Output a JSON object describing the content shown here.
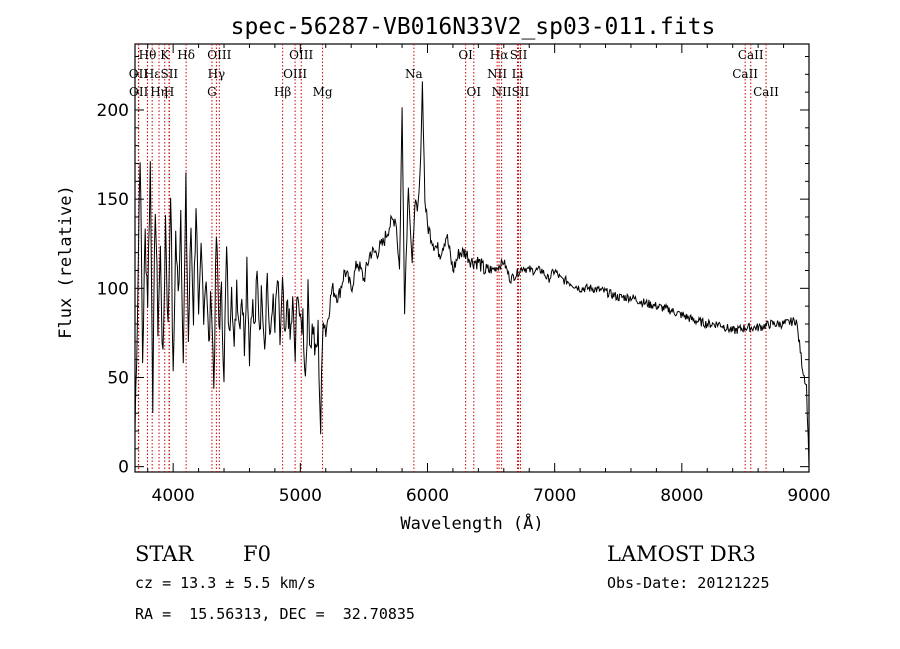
{
  "chart_data": {
    "type": "line",
    "title": "spec-56287-VB016N33V2_sp03-011.fits",
    "xlabel": "Wavelength (Å)",
    "ylabel": "Flux (relative)",
    "xlim": [
      3700,
      9000
    ],
    "ylim": [
      -3,
      237
    ],
    "xticks": [
      4000,
      5000,
      6000,
      7000,
      8000,
      9000
    ],
    "yticks": [
      0,
      50,
      100,
      150,
      200
    ],
    "grid": false,
    "legend": "none",
    "series": [
      {
        "name": "flux",
        "x": [
          3700,
          3720,
          3740,
          3760,
          3780,
          3800,
          3820,
          3840,
          3860,
          3880,
          3900,
          3920,
          3940,
          3960,
          3980,
          4000,
          4020,
          4040,
          4060,
          4080,
          4100,
          4120,
          4140,
          4160,
          4180,
          4200,
          4220,
          4240,
          4260,
          4280,
          4300,
          4320,
          4340,
          4360,
          4380,
          4400,
          4420,
          4440,
          4460,
          4480,
          4500,
          4520,
          4540,
          4560,
          4580,
          4600,
          4620,
          4640,
          4660,
          4680,
          4700,
          4720,
          4740,
          4760,
          4780,
          4800,
          4820,
          4840,
          4860,
          4880,
          4900,
          4920,
          4940,
          4960,
          4980,
          5000,
          5020,
          5040,
          5060,
          5080,
          5100,
          5120,
          5140,
          5160,
          5180,
          5200,
          5250,
          5300,
          5350,
          5400,
          5450,
          5500,
          5550,
          5600,
          5650,
          5700,
          5750,
          5780,
          5800,
          5820,
          5850,
          5880,
          5900,
          5920,
          5940,
          5960,
          5980,
          6000,
          6050,
          6100,
          6150,
          6200,
          6250,
          6300,
          6350,
          6400,
          6450,
          6500,
          6550,
          6600,
          6650,
          6700,
          6750,
          6800,
          6850,
          6900,
          6950,
          7000,
          7050,
          7100,
          7150,
          7200,
          7300,
          7400,
          7500,
          7600,
          7700,
          7800,
          7900,
          8000,
          8100,
          8200,
          8300,
          8400,
          8500,
          8600,
          8700,
          8800,
          8900,
          8950,
          8980,
          9000
        ],
        "y": [
          20,
          90,
          180,
          60,
          130,
          95,
          170,
          40,
          150,
          80,
          120,
          55,
          140,
          75,
          160,
          45,
          130,
          95,
          145,
          60,
          155,
          70,
          135,
          85,
          150,
          75,
          120,
          90,
          110,
          65,
          100,
          45,
          130,
          80,
          95,
          55,
          120,
          70,
          110,
          60,
          105,
          80,
          100,
          70,
          115,
          65,
          95,
          75,
          105,
          80,
          100,
          70,
          110,
          65,
          95,
          75,
          105,
          70,
          100,
          65,
          95,
          70,
          90,
          60,
          105,
          75,
          85,
          50,
          95,
          70,
          80,
          60,
          75,
          20,
          90,
          75,
          100,
          95,
          110,
          100,
          115,
          105,
          120,
          120,
          125,
          135,
          140,
          110,
          200,
          90,
          160,
          110,
          150,
          140,
          160,
          215,
          150,
          135,
          125,
          120,
          130,
          110,
          120,
          120,
          115,
          115,
          110,
          110,
          112,
          115,
          105,
          108,
          112,
          110,
          110,
          110,
          105,
          110,
          105,
          104,
          102,
          100,
          100,
          98,
          95,
          95,
          92,
          90,
          88,
          85,
          82,
          80,
          80,
          76,
          78,
          78,
          80,
          80,
          82,
          55,
          45,
          0
        ]
      }
    ],
    "line_markers": [
      {
        "label": "Hθ",
        "wavelength": 3798,
        "row": 0
      },
      {
        "label": "OII",
        "wavelength": 3727,
        "row": 1
      },
      {
        "label": "OII",
        "wavelength": 3729,
        "row": 2
      },
      {
        "label": "Hε",
        "wavelength": 3835,
        "row": 1
      },
      {
        "label": "Hη",
        "wavelength": 3889,
        "row": 2
      },
      {
        "label": "K",
        "wavelength": 3934,
        "row": 0
      },
      {
        "label": "SII",
        "wavelength": 3970,
        "row": 1
      },
      {
        "label": "H",
        "wavelength": 3968,
        "row": 2
      },
      {
        "label": "Hδ",
        "wavelength": 4102,
        "row": 0
      },
      {
        "label": "OIII",
        "wavelength": 4363,
        "row": 0
      },
      {
        "label": "Hγ",
        "wavelength": 4340,
        "row": 1
      },
      {
        "label": "G",
        "wavelength": 4305,
        "row": 2
      },
      {
        "label": "OIII",
        "wavelength": 5007,
        "row": 0
      },
      {
        "label": "OIII",
        "wavelength": 4959,
        "row": 1
      },
      {
        "label": "Hβ",
        "wavelength": 4861,
        "row": 2
      },
      {
        "label": "Mg",
        "wavelength": 5175,
        "row": 2
      },
      {
        "label": "Na",
        "wavelength": 5893,
        "row": 1
      },
      {
        "label": "OI",
        "wavelength": 6300,
        "row": 0
      },
      {
        "label": "OI",
        "wavelength": 6364,
        "row": 2
      },
      {
        "label": "Hα",
        "wavelength": 6563,
        "row": 0
      },
      {
        "label": "SII",
        "wavelength": 6716,
        "row": 0
      },
      {
        "label": "NII",
        "wavelength": 6548,
        "row": 1
      },
      {
        "label": "Li",
        "wavelength": 6708,
        "row": 1
      },
      {
        "label": "NII",
        "wavelength": 6583,
        "row": 2
      },
      {
        "label": "SII",
        "wavelength": 6731,
        "row": 2
      },
      {
        "label": "CaII",
        "wavelength": 8542,
        "row": 0
      },
      {
        "label": "CaII",
        "wavelength": 8498,
        "row": 1
      },
      {
        "label": "CaII",
        "wavelength": 8662,
        "row": 2
      }
    ]
  },
  "info": {
    "class": "STAR",
    "subclass": "F0",
    "survey": "LAMOST DR3",
    "cz": "cz = 13.3 ± 5.5 km/s",
    "obs_date": "Obs-Date: 20121225",
    "radec": "RA =  15.56313, DEC =  32.70835"
  },
  "colors": {
    "line": "#000000",
    "marker": "#cc0000",
    "background": "#ffffff"
  }
}
